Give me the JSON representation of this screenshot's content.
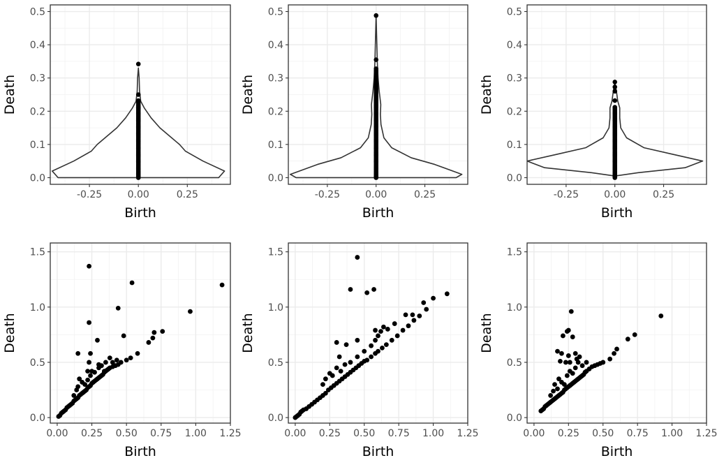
{
  "chart_data": [
    {
      "type": "violin",
      "xlabel": "Birth",
      "ylabel": "Death",
      "xlim": [
        -0.45,
        0.47
      ],
      "ylim": [
        -0.02,
        0.52
      ],
      "x_ticks": [
        -0.25,
        0.0,
        0.25
      ],
      "x_tick_labels": [
        "-0.25",
        "0.00",
        "0.25"
      ],
      "y_ticks": [
        0.0,
        0.1,
        0.2,
        0.3,
        0.4,
        0.5
      ],
      "y_tick_labels": [
        "0.0",
        "0.1",
        "0.2",
        "0.3",
        "0.4",
        "0.5"
      ],
      "grid": true,
      "violin_profile": [
        [
          0.0,
          0.41
        ],
        [
          0.02,
          0.44
        ],
        [
          0.05,
          0.33
        ],
        [
          0.08,
          0.24
        ],
        [
          0.1,
          0.21
        ],
        [
          0.12,
          0.17
        ],
        [
          0.15,
          0.11
        ],
        [
          0.18,
          0.065
        ],
        [
          0.21,
          0.03
        ],
        [
          0.23,
          0.012
        ],
        [
          0.26,
          0.006
        ],
        [
          0.3,
          0.004
        ],
        [
          0.33,
          0.0
        ]
      ],
      "points": {
        "x": 0.0,
        "dense_range": [
          0.0,
          0.235
        ],
        "outliers": [
          0.21,
          0.25,
          0.342
        ]
      }
    },
    {
      "type": "violin",
      "xlabel": "Birth",
      "ylabel": "Death",
      "xlim": [
        -0.45,
        0.47
      ],
      "ylim": [
        -0.02,
        0.52
      ],
      "x_ticks": [
        -0.25,
        0.0,
        0.25
      ],
      "x_tick_labels": [
        "-0.25",
        "0.00",
        "0.25"
      ],
      "y_ticks": [
        0.0,
        0.1,
        0.2,
        0.3,
        0.4,
        0.5
      ],
      "y_tick_labels": [
        "0.0",
        "0.1",
        "0.2",
        "0.3",
        "0.4",
        "0.5"
      ],
      "grid": true,
      "violin_profile": [
        [
          0.0,
          0.41
        ],
        [
          0.01,
          0.44
        ],
        [
          0.04,
          0.3
        ],
        [
          0.06,
          0.18
        ],
        [
          0.09,
          0.08
        ],
        [
          0.12,
          0.04
        ],
        [
          0.16,
          0.025
        ],
        [
          0.19,
          0.022
        ],
        [
          0.22,
          0.024
        ],
        [
          0.26,
          0.016
        ],
        [
          0.3,
          0.01
        ],
        [
          0.35,
          0.006
        ],
        [
          0.42,
          0.003
        ],
        [
          0.49,
          0.0
        ]
      ],
      "points": {
        "x": 0.0,
        "dense_range": [
          0.0,
          0.33
        ],
        "outliers": [
          0.355,
          0.488
        ]
      }
    },
    {
      "type": "violin",
      "xlabel": "Birth",
      "ylabel": "Death",
      "xlim": [
        -0.45,
        0.47
      ],
      "ylim": [
        -0.02,
        0.52
      ],
      "x_ticks": [
        -0.25,
        0.0,
        0.25
      ],
      "x_tick_labels": [
        "-0.25",
        "0.00",
        "0.25"
      ],
      "y_ticks": [
        0.0,
        0.1,
        0.2,
        0.3,
        0.4,
        0.5
      ],
      "y_tick_labels": [
        "0.0",
        "0.1",
        "0.2",
        "0.3",
        "0.4",
        "0.5"
      ],
      "grid": true,
      "violin_profile": [
        [
          0.005,
          0.0
        ],
        [
          0.015,
          0.12
        ],
        [
          0.03,
          0.36
        ],
        [
          0.05,
          0.45
        ],
        [
          0.07,
          0.3
        ],
        [
          0.09,
          0.15
        ],
        [
          0.12,
          0.06
        ],
        [
          0.15,
          0.03
        ],
        [
          0.18,
          0.025
        ],
        [
          0.21,
          0.025
        ],
        [
          0.23,
          0.015
        ],
        [
          0.26,
          0.008
        ],
        [
          0.29,
          0.0
        ]
      ],
      "points": {
        "x": 0.0,
        "dense_range": [
          0.0,
          0.215
        ],
        "outliers": [
          0.232,
          0.26,
          0.273,
          0.288
        ]
      }
    },
    {
      "type": "scatter",
      "xlabel": "Birth",
      "ylabel": "Death",
      "xlim": [
        -0.05,
        1.25
      ],
      "ylim": [
        -0.05,
        1.58
      ],
      "x_ticks": [
        0.0,
        0.25,
        0.5,
        0.75,
        1.0,
        1.25
      ],
      "x_tick_labels": [
        "0.00",
        "0.25",
        "0.50",
        "0.75",
        "1.00",
        "1.25"
      ],
      "y_ticks": [
        0.0,
        0.5,
        1.0,
        1.5
      ],
      "y_tick_labels": [
        "0.0",
        "0.5",
        "1.0",
        "1.5"
      ],
      "grid": true,
      "points": [
        [
          0.01,
          0.01
        ],
        [
          0.02,
          0.02
        ],
        [
          0.03,
          0.04
        ],
        [
          0.04,
          0.05
        ],
        [
          0.05,
          0.06
        ],
        [
          0.06,
          0.07
        ],
        [
          0.07,
          0.09
        ],
        [
          0.08,
          0.1
        ],
        [
          0.09,
          0.11
        ],
        [
          0.1,
          0.12
        ],
        [
          0.11,
          0.13
        ],
        [
          0.12,
          0.15
        ],
        [
          0.13,
          0.16
        ],
        [
          0.14,
          0.17
        ],
        [
          0.15,
          0.18
        ],
        [
          0.16,
          0.2
        ],
        [
          0.17,
          0.21
        ],
        [
          0.18,
          0.22
        ],
        [
          0.19,
          0.23
        ],
        [
          0.2,
          0.24
        ],
        [
          0.21,
          0.25
        ],
        [
          0.22,
          0.27
        ],
        [
          0.23,
          0.28
        ],
        [
          0.24,
          0.29
        ],
        [
          0.25,
          0.31
        ],
        [
          0.26,
          0.32
        ],
        [
          0.27,
          0.33
        ],
        [
          0.28,
          0.34
        ],
        [
          0.29,
          0.35
        ],
        [
          0.3,
          0.36
        ],
        [
          0.31,
          0.37
        ],
        [
          0.32,
          0.38
        ],
        [
          0.33,
          0.39
        ],
        [
          0.34,
          0.41
        ],
        [
          0.35,
          0.42
        ],
        [
          0.36,
          0.43
        ],
        [
          0.37,
          0.44
        ],
        [
          0.38,
          0.45
        ],
        [
          0.4,
          0.46
        ],
        [
          0.42,
          0.47
        ],
        [
          0.44,
          0.48
        ],
        [
          0.46,
          0.5
        ],
        [
          0.5,
          0.52
        ],
        [
          0.53,
          0.54
        ],
        [
          0.58,
          0.58
        ],
        [
          0.66,
          0.68
        ],
        [
          0.69,
          0.72
        ],
        [
          0.7,
          0.77
        ],
        [
          0.76,
          0.78
        ],
        [
          0.96,
          0.96
        ],
        [
          1.19,
          1.2
        ],
        [
          0.12,
          0.2
        ],
        [
          0.14,
          0.25
        ],
        [
          0.15,
          0.28
        ],
        [
          0.16,
          0.35
        ],
        [
          0.18,
          0.32
        ],
        [
          0.2,
          0.3
        ],
        [
          0.22,
          0.34
        ],
        [
          0.24,
          0.38
        ],
        [
          0.25,
          0.42
        ],
        [
          0.27,
          0.41
        ],
        [
          0.3,
          0.45
        ],
        [
          0.32,
          0.47
        ],
        [
          0.34,
          0.42
        ],
        [
          0.38,
          0.54
        ],
        [
          0.4,
          0.5
        ],
        [
          0.43,
          0.52
        ],
        [
          0.15,
          0.58
        ],
        [
          0.22,
          0.42
        ],
        [
          0.24,
          0.58
        ],
        [
          0.23,
          0.5
        ],
        [
          0.3,
          0.48
        ],
        [
          0.35,
          0.5
        ],
        [
          0.29,
          0.7
        ],
        [
          0.23,
          0.86
        ],
        [
          0.44,
          0.99
        ],
        [
          0.48,
          0.74
        ],
        [
          0.54,
          1.22
        ],
        [
          0.23,
          1.37
        ]
      ]
    },
    {
      "type": "scatter",
      "xlabel": "Birth",
      "ylabel": "Death",
      "xlim": [
        -0.05,
        1.25
      ],
      "ylim": [
        -0.05,
        1.58
      ],
      "x_ticks": [
        0.0,
        0.25,
        0.5,
        0.75,
        1.0,
        1.25
      ],
      "x_tick_labels": [
        "0.00",
        "0.25",
        "0.50",
        "0.75",
        "1.00",
        "1.25"
      ],
      "y_ticks": [
        0.0,
        0.5,
        1.0,
        1.5
      ],
      "y_tick_labels": [
        "0.0",
        "0.5",
        "1.0",
        "1.5"
      ],
      "grid": true,
      "points": [
        [
          0.0,
          0.0
        ],
        [
          0.01,
          0.01
        ],
        [
          0.02,
          0.02
        ],
        [
          0.03,
          0.03
        ],
        [
          0.04,
          0.05
        ],
        [
          0.05,
          0.06
        ],
        [
          0.06,
          0.07
        ],
        [
          0.08,
          0.08
        ],
        [
          0.1,
          0.1
        ],
        [
          0.12,
          0.12
        ],
        [
          0.14,
          0.14
        ],
        [
          0.16,
          0.16
        ],
        [
          0.18,
          0.18
        ],
        [
          0.2,
          0.2
        ],
        [
          0.22,
          0.22
        ],
        [
          0.24,
          0.25
        ],
        [
          0.26,
          0.27
        ],
        [
          0.28,
          0.29
        ],
        [
          0.3,
          0.31
        ],
        [
          0.32,
          0.33
        ],
        [
          0.34,
          0.35
        ],
        [
          0.36,
          0.37
        ],
        [
          0.38,
          0.39
        ],
        [
          0.4,
          0.41
        ],
        [
          0.42,
          0.43
        ],
        [
          0.44,
          0.45
        ],
        [
          0.46,
          0.47
        ],
        [
          0.48,
          0.49
        ],
        [
          0.5,
          0.51
        ],
        [
          0.52,
          0.52
        ],
        [
          0.55,
          0.55
        ],
        [
          0.58,
          0.58
        ],
        [
          0.6,
          0.6
        ],
        [
          0.63,
          0.63
        ],
        [
          0.66,
          0.66
        ],
        [
          0.7,
          0.7
        ],
        [
          0.74,
          0.74
        ],
        [
          0.78,
          0.79
        ],
        [
          0.82,
          0.83
        ],
        [
          0.86,
          0.88
        ],
        [
          0.9,
          0.92
        ],
        [
          1.0,
          1.08
        ],
        [
          1.1,
          1.12
        ],
        [
          0.2,
          0.3
        ],
        [
          0.22,
          0.35
        ],
        [
          0.25,
          0.4
        ],
        [
          0.27,
          0.38
        ],
        [
          0.3,
          0.45
        ],
        [
          0.33,
          0.42
        ],
        [
          0.36,
          0.48
        ],
        [
          0.4,
          0.5
        ],
        [
          0.45,
          0.55
        ],
        [
          0.5,
          0.6
        ],
        [
          0.55,
          0.65
        ],
        [
          0.58,
          0.7
        ],
        [
          0.6,
          0.74
        ],
        [
          0.62,
          0.78
        ],
        [
          0.67,
          0.8
        ],
        [
          0.72,
          0.85
        ],
        [
          0.8,
          0.93
        ],
        [
          0.85,
          0.93
        ],
        [
          0.93,
          1.04
        ],
        [
          0.95,
          0.98
        ],
        [
          0.3,
          0.68
        ],
        [
          0.37,
          0.66
        ],
        [
          0.32,
          0.55
        ],
        [
          0.45,
          0.7
        ],
        [
          0.58,
          0.79
        ],
        [
          0.64,
          0.82
        ],
        [
          0.4,
          1.16
        ],
        [
          0.52,
          1.13
        ],
        [
          0.57,
          1.16
        ],
        [
          0.45,
          1.45
        ]
      ]
    },
    {
      "type": "scatter",
      "xlabel": "Birth",
      "ylabel": "Death",
      "xlim": [
        -0.05,
        1.25
      ],
      "ylim": [
        -0.05,
        1.58
      ],
      "x_ticks": [
        0.0,
        0.25,
        0.5,
        0.75,
        1.0,
        1.25
      ],
      "x_tick_labels": [
        "0.00",
        "0.25",
        "0.50",
        "0.75",
        "1.00",
        "1.25"
      ],
      "y_ticks": [
        0.0,
        0.5,
        1.0,
        1.5
      ],
      "y_tick_labels": [
        "0.0",
        "0.5",
        "1.0",
        "1.5"
      ],
      "grid": true,
      "points": [
        [
          0.05,
          0.06
        ],
        [
          0.06,
          0.07
        ],
        [
          0.07,
          0.08
        ],
        [
          0.08,
          0.1
        ],
        [
          0.09,
          0.11
        ],
        [
          0.1,
          0.12
        ],
        [
          0.11,
          0.13
        ],
        [
          0.12,
          0.14
        ],
        [
          0.13,
          0.15
        ],
        [
          0.14,
          0.16
        ],
        [
          0.15,
          0.17
        ],
        [
          0.16,
          0.18
        ],
        [
          0.17,
          0.19
        ],
        [
          0.18,
          0.2
        ],
        [
          0.19,
          0.21
        ],
        [
          0.2,
          0.22
        ],
        [
          0.21,
          0.23
        ],
        [
          0.22,
          0.25
        ],
        [
          0.23,
          0.26
        ],
        [
          0.24,
          0.27
        ],
        [
          0.25,
          0.28
        ],
        [
          0.26,
          0.29
        ],
        [
          0.27,
          0.3
        ],
        [
          0.28,
          0.31
        ],
        [
          0.29,
          0.32
        ],
        [
          0.3,
          0.33
        ],
        [
          0.31,
          0.34
        ],
        [
          0.32,
          0.35
        ],
        [
          0.33,
          0.36
        ],
        [
          0.34,
          0.37
        ],
        [
          0.35,
          0.38
        ],
        [
          0.36,
          0.39
        ],
        [
          0.37,
          0.41
        ],
        [
          0.38,
          0.42
        ],
        [
          0.4,
          0.44
        ],
        [
          0.42,
          0.46
        ],
        [
          0.44,
          0.47
        ],
        [
          0.46,
          0.48
        ],
        [
          0.48,
          0.49
        ],
        [
          0.5,
          0.5
        ],
        [
          0.55,
          0.53
        ],
        [
          0.58,
          0.58
        ],
        [
          0.6,
          0.62
        ],
        [
          0.68,
          0.71
        ],
        [
          0.73,
          0.75
        ],
        [
          0.92,
          0.92
        ],
        [
          0.12,
          0.2
        ],
        [
          0.14,
          0.24
        ],
        [
          0.15,
          0.3
        ],
        [
          0.17,
          0.26
        ],
        [
          0.18,
          0.35
        ],
        [
          0.2,
          0.32
        ],
        [
          0.22,
          0.3
        ],
        [
          0.24,
          0.38
        ],
        [
          0.26,
          0.42
        ],
        [
          0.28,
          0.4
        ],
        [
          0.3,
          0.45
        ],
        [
          0.35,
          0.47
        ],
        [
          0.38,
          0.5
        ],
        [
          0.17,
          0.6
        ],
        [
          0.2,
          0.58
        ],
        [
          0.19,
          0.51
        ],
        [
          0.25,
          0.56
        ],
        [
          0.23,
          0.5
        ],
        [
          0.32,
          0.5
        ],
        [
          0.26,
          0.5
        ],
        [
          0.21,
          0.74
        ],
        [
          0.24,
          0.78
        ],
        [
          0.25,
          0.79
        ],
        [
          0.28,
          0.73
        ],
        [
          0.3,
          0.58
        ],
        [
          0.31,
          0.53
        ],
        [
          0.33,
          0.55
        ],
        [
          0.27,
          0.96
        ]
      ]
    }
  ]
}
